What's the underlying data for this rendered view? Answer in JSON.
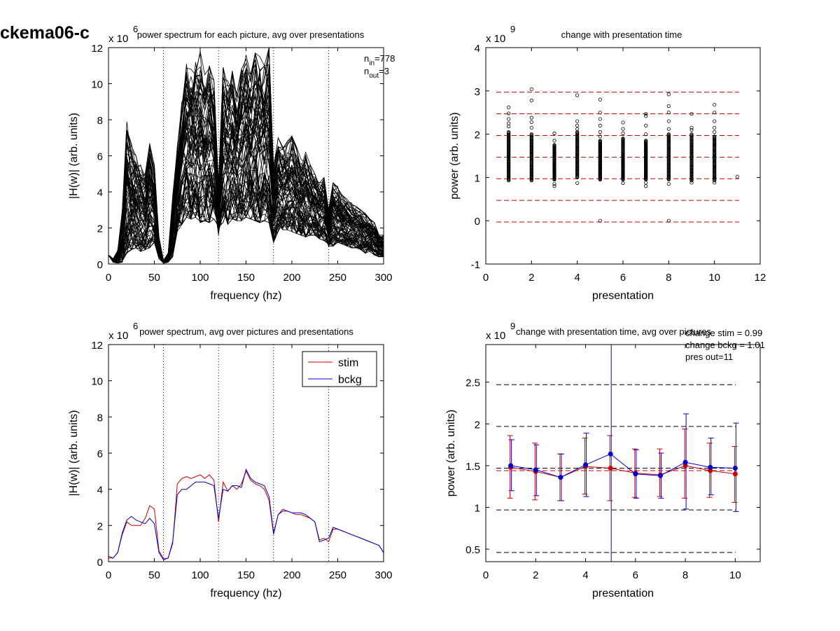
{
  "figure_title": "ckema06-c",
  "chart_data": [
    {
      "id": "p1",
      "type": "line",
      "title": "power spectrum for each picture, avg over presentations",
      "xlabel": "frequency (hz)",
      "ylabel": "|H(w)| (arb. units)",
      "exponent_label": "x 10",
      "exponent_power": "6",
      "xlim": [
        0,
        300
      ],
      "ylim": [
        0,
        12
      ],
      "xticks": [
        0,
        50,
        100,
        150,
        200,
        250,
        300
      ],
      "yticks": [
        0,
        2,
        4,
        6,
        8,
        10,
        12
      ],
      "vlines": [
        60,
        120,
        180,
        240,
        300
      ],
      "annotations": [
        {
          "base": "n",
          "sub": "in",
          "rest": "=778"
        },
        {
          "base": "n",
          "sub": "out",
          "rest": "=3"
        }
      ],
      "series_count": 80,
      "line_color": "#000000",
      "envelope": {
        "x": [
          0,
          5,
          10,
          15,
          20,
          25,
          30,
          35,
          40,
          45,
          50,
          55,
          60,
          65,
          70,
          75,
          80,
          85,
          90,
          95,
          100,
          105,
          110,
          115,
          120,
          125,
          130,
          135,
          140,
          145,
          150,
          155,
          160,
          165,
          170,
          175,
          180,
          185,
          190,
          195,
          200,
          205,
          210,
          215,
          220,
          225,
          230,
          235,
          240,
          245,
          250,
          255,
          260,
          265,
          270,
          275,
          280,
          285,
          290,
          295,
          300
        ],
        "low": [
          0.5,
          0.1,
          0.05,
          0.1,
          0.6,
          0.8,
          0.9,
          0.7,
          0.8,
          0.9,
          1.2,
          0.3,
          0.05,
          0.1,
          0.4,
          1.8,
          2.2,
          2.6,
          2.5,
          2.6,
          2.3,
          2.4,
          2.3,
          2.5,
          1.6,
          2.3,
          2.2,
          2.5,
          2.4,
          2.4,
          2.6,
          2.5,
          2.4,
          2.3,
          2.4,
          2.3,
          1.2,
          1.8,
          1.9,
          1.9,
          1.8,
          1.7,
          1.6,
          1.5,
          1.6,
          1.6,
          1.4,
          1.3,
          1.0,
          1.0,
          1.2,
          1.1,
          1.0,
          0.9,
          0.9,
          0.8,
          0.6,
          0.7,
          0.5,
          0.4,
          0.4
        ],
        "high": [
          0.5,
          0.3,
          0.8,
          3.0,
          7.9,
          7.0,
          6.0,
          5.5,
          5.0,
          6.7,
          5.5,
          1.5,
          0.2,
          0.6,
          3.8,
          6.5,
          9.0,
          11.5,
          10.8,
          11.2,
          11.8,
          10.5,
          11.0,
          10.2,
          4.5,
          10.9,
          10.5,
          11.0,
          9.5,
          10.8,
          11.6,
          10.5,
          11.7,
          11.5,
          11.0,
          12.0,
          5.5,
          7.0,
          6.5,
          6.8,
          7.1,
          6.5,
          5.8,
          6.2,
          5.5,
          5.0,
          4.5,
          4.8,
          3.0,
          4.5,
          4.3,
          3.8,
          3.6,
          3.4,
          3.2,
          3.0,
          2.8,
          2.5,
          2.3,
          1.6,
          1.6
        ]
      }
    },
    {
      "id": "p2",
      "type": "scatter",
      "title": "change with presentation time",
      "xlabel": "presentation",
      "ylabel": "power (arb. units)",
      "exponent_label": "x 10",
      "exponent_power": "9",
      "xlim": [
        0,
        12
      ],
      "ylim": [
        -1,
        4
      ],
      "xticks": [
        0,
        2,
        4,
        6,
        8,
        10,
        12
      ],
      "yticks": [
        -1,
        0,
        1,
        2,
        3,
        4
      ],
      "hlines": [
        2.97,
        2.47,
        1.97,
        1.47,
        0.97,
        0.47,
        -0.03
      ],
      "hline_color": "#cc0000",
      "marker_color": "#000000",
      "points_per_presentation": 60,
      "scatter_columns": [
        {
          "x": 1,
          "min": 0.93,
          "max": 2.05,
          "outliers": [
            2.18,
            2.25,
            2.35,
            2.48,
            2.62
          ]
        },
        {
          "x": 2,
          "min": 0.93,
          "max": 2.0,
          "outliers": [
            2.15,
            2.28,
            2.38,
            2.78,
            3.04
          ]
        },
        {
          "x": 3,
          "min": 0.95,
          "max": 1.75,
          "outliers": [
            0.8,
            0.85,
            1.85,
            2.02
          ]
        },
        {
          "x": 4,
          "min": 1.0,
          "max": 2.05,
          "outliers": [
            0.87,
            2.12,
            2.2,
            2.3,
            2.9
          ]
        },
        {
          "x": 5,
          "min": 0.95,
          "max": 1.85,
          "outliers": [
            0.0,
            1.95,
            2.05,
            2.2,
            2.35,
            2.5,
            2.8
          ]
        },
        {
          "x": 6,
          "min": 0.95,
          "max": 1.9,
          "outliers": [
            0.87,
            2.02,
            2.12,
            2.27
          ]
        },
        {
          "x": 7,
          "min": 0.95,
          "max": 1.85,
          "outliers": [
            0.8,
            0.88,
            2.0,
            2.2,
            2.42,
            2.47
          ]
        },
        {
          "x": 8,
          "min": 0.95,
          "max": 2.0,
          "outliers": [
            0.0,
            0.85,
            2.12,
            2.3,
            2.5,
            2.65,
            2.92
          ]
        },
        {
          "x": 9,
          "min": 0.93,
          "max": 2.0,
          "outliers": [
            0.88,
            2.1,
            2.15,
            2.47
          ]
        },
        {
          "x": 10,
          "min": 0.93,
          "max": 1.95,
          "outliers": [
            0.88,
            2.05,
            2.15,
            2.3,
            2.5,
            2.68
          ]
        },
        {
          "x": 11,
          "min": 1.02,
          "max": 1.02,
          "outliers": []
        }
      ]
    },
    {
      "id": "p3",
      "type": "line",
      "title": "power spectrum, avg over pictures and presentations",
      "xlabel": "frequency (hz)",
      "ylabel": "|H(w)| (arb. units)",
      "exponent_label": "x 10",
      "exponent_power": "6",
      "xlim": [
        0,
        300
      ],
      "ylim": [
        0,
        12
      ],
      "xticks": [
        0,
        50,
        100,
        150,
        200,
        250,
        300
      ],
      "yticks": [
        0,
        2,
        4,
        6,
        8,
        10,
        12
      ],
      "vlines": [
        60,
        120,
        180,
        240,
        300
      ],
      "legend": "top-right",
      "x": [
        0,
        5,
        10,
        15,
        20,
        25,
        30,
        35,
        40,
        45,
        50,
        55,
        60,
        65,
        70,
        75,
        80,
        85,
        90,
        95,
        100,
        105,
        110,
        115,
        120,
        125,
        130,
        135,
        140,
        145,
        150,
        155,
        160,
        165,
        170,
        175,
        180,
        185,
        190,
        195,
        200,
        205,
        210,
        215,
        220,
        225,
        230,
        235,
        240,
        245,
        250,
        255,
        260,
        265,
        270,
        275,
        280,
        285,
        290,
        295,
        300
      ],
      "series": [
        {
          "name": "stim",
          "color": "#cc0000",
          "values": [
            0.2,
            0.2,
            0.5,
            1.5,
            2.2,
            2.0,
            2.0,
            2.0,
            2.4,
            3.1,
            2.9,
            0.6,
            0.15,
            0.2,
            1.0,
            4.3,
            4.6,
            4.7,
            4.6,
            4.7,
            4.8,
            4.6,
            4.8,
            4.5,
            2.2,
            4.4,
            3.9,
            4.2,
            4.0,
            4.3,
            5.0,
            4.5,
            4.3,
            4.2,
            4.0,
            3.4,
            1.5,
            2.6,
            2.9,
            2.8,
            2.7,
            2.6,
            2.6,
            2.5,
            2.4,
            2.2,
            1.2,
            1.3,
            1.1,
            1.8,
            1.8,
            1.7,
            1.6,
            1.5,
            1.4,
            1.3,
            1.2,
            1.1,
            1.0,
            0.9,
            0.5
          ]
        },
        {
          "name": "bckg",
          "color": "#0000cc",
          "values": [
            0.3,
            0.2,
            0.5,
            1.6,
            2.3,
            2.5,
            2.3,
            2.2,
            2.1,
            2.4,
            2.1,
            0.5,
            0.1,
            0.2,
            1.1,
            3.7,
            4.0,
            4.0,
            4.2,
            4.4,
            4.4,
            4.4,
            4.3,
            4.2,
            2.4,
            4.0,
            3.9,
            4.2,
            4.2,
            4.1,
            5.1,
            4.6,
            4.4,
            4.3,
            4.2,
            3.6,
            1.6,
            2.6,
            2.8,
            2.8,
            2.7,
            2.7,
            2.7,
            2.6,
            2.4,
            2.2,
            1.1,
            1.2,
            1.3,
            1.9,
            1.8,
            1.7,
            1.6,
            1.5,
            1.4,
            1.3,
            1.2,
            1.1,
            1.0,
            0.9,
            0.5
          ]
        }
      ]
    },
    {
      "id": "p4",
      "type": "line",
      "title": "change with presentation time, avg over pictures",
      "xlabel": "presentation",
      "ylabel": "power (arb. units)",
      "exponent_label": "x 10",
      "exponent_power": "9",
      "xlim": [
        0,
        11
      ],
      "ylim": [
        0.35,
        2.95
      ],
      "xticks": [
        0,
        2,
        4,
        6,
        8,
        10
      ],
      "yticks": [
        0.5,
        1,
        1.5,
        2,
        2.5
      ],
      "hlines": [
        2.47,
        1.97,
        1.47,
        0.97,
        0.46
      ],
      "hline_color": "#000000",
      "red_reference_line": 1.44,
      "annotations": [
        "change stim = 0.99",
        "change bckg = 1.01",
        "pres out=11"
      ],
      "x": [
        1,
        2,
        3,
        4,
        5,
        6,
        7,
        8,
        9,
        10
      ],
      "series": [
        {
          "name": "stim",
          "color": "#cc0000",
          "values": [
            1.48,
            1.43,
            1.36,
            1.49,
            1.47,
            1.41,
            1.39,
            1.5,
            1.44,
            1.4
          ],
          "err_low": [
            1.11,
            1.09,
            1.08,
            1.16,
            1.08,
            1.12,
            1.13,
            1.11,
            1.12,
            1.06
          ],
          "err_high": [
            1.86,
            1.77,
            1.64,
            1.83,
            1.86,
            1.7,
            1.7,
            1.94,
            1.77,
            1.73
          ]
        },
        {
          "name": "bckg",
          "color": "#0000cc",
          "values": [
            1.5,
            1.45,
            1.36,
            1.51,
            1.64,
            1.4,
            1.38,
            1.54,
            1.48,
            1.47
          ],
          "err_low": [
            1.2,
            1.14,
            1.08,
            1.13,
            0.35,
            1.11,
            1.11,
            0.98,
            1.15,
            0.95
          ],
          "err_high": [
            1.81,
            1.75,
            1.64,
            1.89,
            2.95,
            1.69,
            1.65,
            2.12,
            1.83,
            2.01
          ]
        }
      ]
    }
  ]
}
